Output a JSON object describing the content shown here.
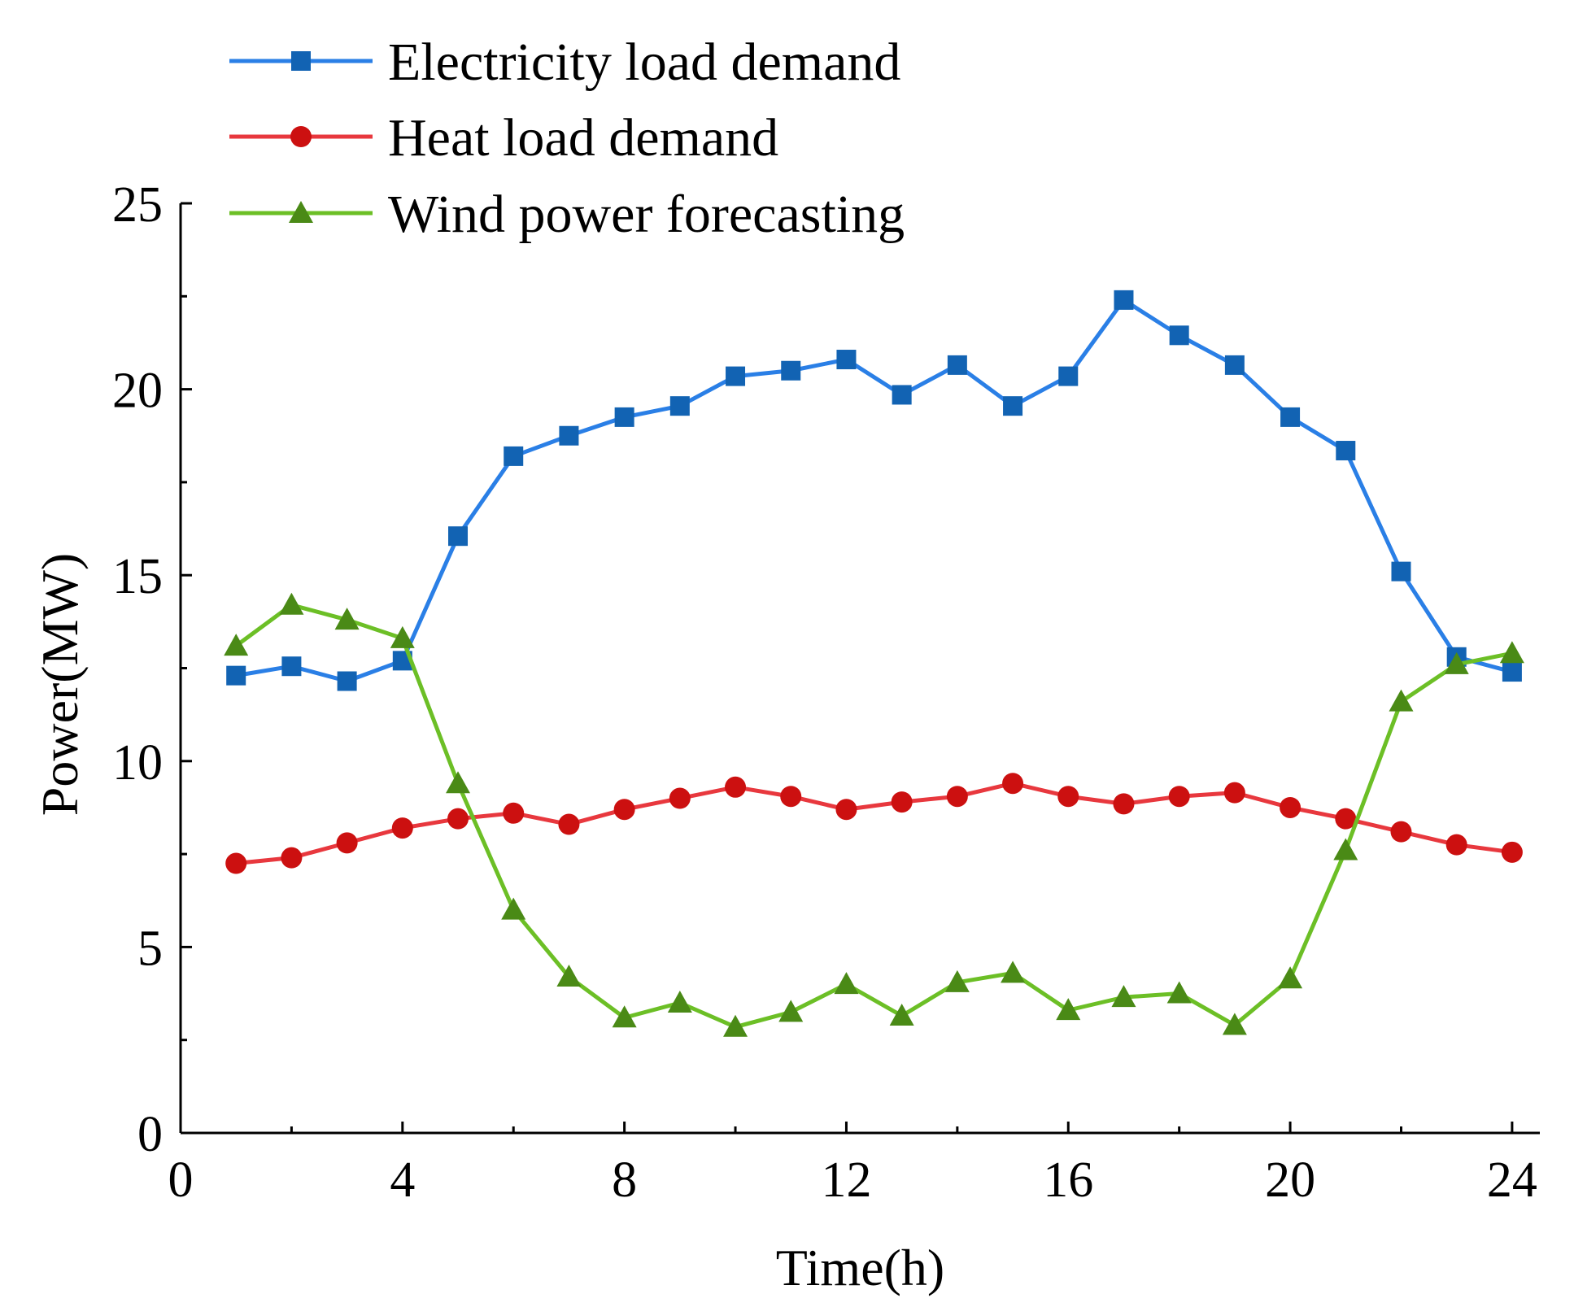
{
  "chart_data": {
    "type": "line",
    "title": "",
    "xlabel": "Time(h)",
    "ylabel": "Power(MW)",
    "xlim": [
      0,
      24.5
    ],
    "ylim": [
      0,
      25
    ],
    "xticks": [
      0,
      4,
      8,
      12,
      16,
      20,
      24
    ],
    "yticks": [
      0,
      5,
      10,
      15,
      20,
      25
    ],
    "x": [
      1,
      2,
      3,
      4,
      5,
      6,
      7,
      8,
      9,
      10,
      11,
      12,
      13,
      14,
      15,
      16,
      17,
      18,
      19,
      20,
      21,
      22,
      23,
      24
    ],
    "legend_position": "top-left",
    "series": [
      {
        "name": "Electricity load demand",
        "color": "#1f6fd6",
        "marker": "square",
        "values": [
          12.3,
          12.55,
          12.15,
          12.7,
          16.05,
          18.2,
          18.75,
          19.25,
          19.55,
          20.35,
          20.5,
          20.8,
          19.85,
          20.65,
          19.55,
          20.35,
          22.4,
          21.45,
          20.65,
          19.25,
          18.35,
          15.1,
          12.8,
          12.4
        ]
      },
      {
        "name": "Heat load demand",
        "color": "#e02020",
        "marker": "circle",
        "values": [
          7.25,
          7.4,
          7.8,
          8.2,
          8.45,
          8.6,
          8.3,
          8.7,
          9.0,
          9.3,
          9.05,
          8.7,
          8.9,
          9.05,
          9.4,
          9.05,
          8.85,
          9.05,
          9.15,
          8.75,
          8.45,
          8.1,
          7.75,
          7.55
        ]
      },
      {
        "name": "Wind power forecasting",
        "color": "#5aa51e",
        "marker": "triangle",
        "values": [
          13.1,
          14.2,
          13.8,
          13.3,
          9.4,
          6.0,
          4.2,
          3.1,
          3.5,
          2.85,
          3.25,
          4.0,
          3.15,
          4.05,
          4.3,
          3.3,
          3.65,
          3.75,
          2.9,
          4.15,
          7.6,
          11.6,
          12.6,
          12.9
        ]
      }
    ]
  }
}
